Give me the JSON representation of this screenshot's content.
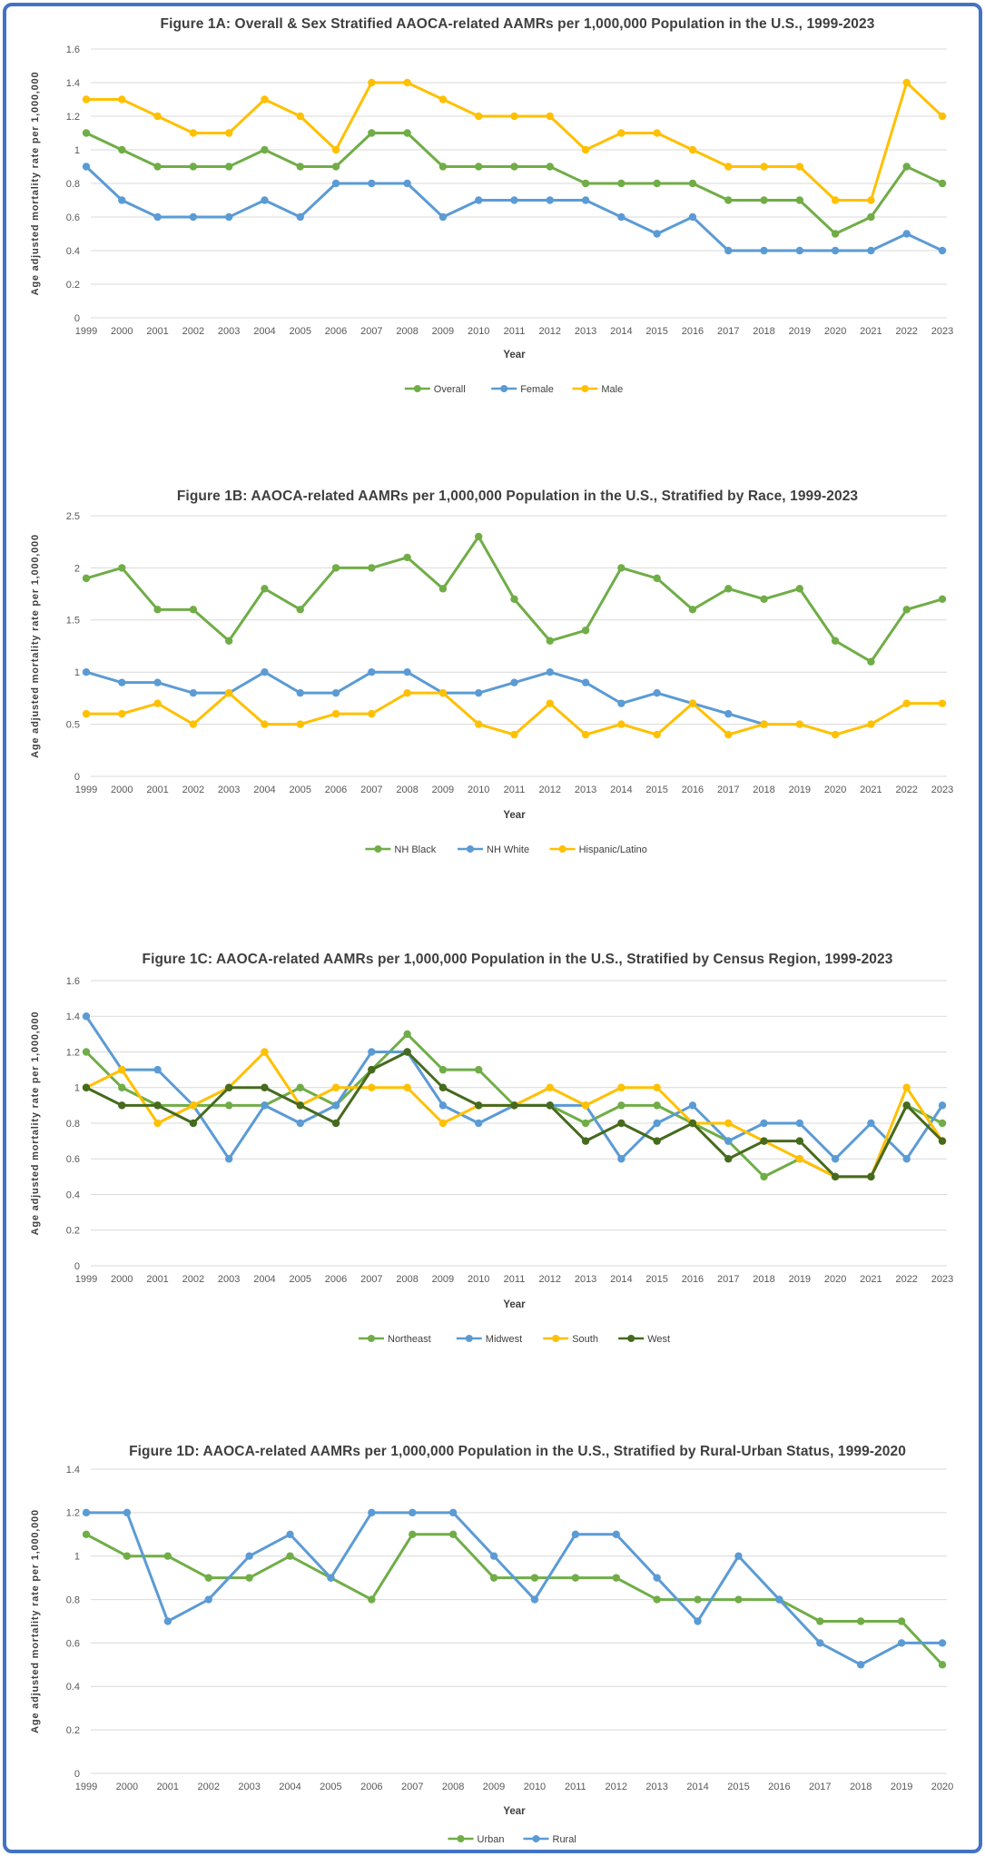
{
  "page": {
    "background": "#ffffff",
    "border_color": "#4472C4"
  },
  "chart_data": [
    {
      "type": "line",
      "title": "Figure 1A: Overall & Sex Stratified AAOCA-related AAMRs per 1,000,000 Population in the U.S., 1999-2023",
      "ylabel": "Age adjusted mortality rate per 1,000,000",
      "xlabel": "Year",
      "ylim": [
        0,
        1.6
      ],
      "ytick_step": 0.2,
      "grid": true,
      "legend_position": "bottom",
      "years": [
        1999,
        2000,
        2001,
        2002,
        2003,
        2004,
        2005,
        2006,
        2007,
        2008,
        2009,
        2010,
        2011,
        2012,
        2013,
        2014,
        2015,
        2016,
        2017,
        2018,
        2019,
        2020,
        2021,
        2022,
        2023
      ],
      "series": [
        {
          "name": "Overall",
          "color": "#70AD47",
          "values": [
            1.1,
            1.0,
            0.9,
            0.9,
            0.9,
            1.0,
            0.9,
            0.9,
            1.1,
            1.1,
            0.9,
            0.9,
            0.9,
            0.9,
            0.8,
            0.8,
            0.8,
            0.8,
            0.7,
            0.7,
            0.7,
            0.5,
            0.6,
            0.9,
            0.8
          ]
        },
        {
          "name": "Female",
          "color": "#5B9BD5",
          "values": [
            0.9,
            0.7,
            0.6,
            0.6,
            0.6,
            0.7,
            0.6,
            0.8,
            0.8,
            0.8,
            0.6,
            0.7,
            0.7,
            0.7,
            0.7,
            0.6,
            0.5,
            0.6,
            0.4,
            0.4,
            0.4,
            0.4,
            0.4,
            0.5,
            0.4
          ]
        },
        {
          "name": "Male",
          "color": "#FFC000",
          "values": [
            1.3,
            1.3,
            1.2,
            1.1,
            1.1,
            1.3,
            1.2,
            1.0,
            1.4,
            1.4,
            1.3,
            1.2,
            1.2,
            1.2,
            1.0,
            1.1,
            1.1,
            1.0,
            0.9,
            0.9,
            0.9,
            0.7,
            0.7,
            1.4,
            1.2
          ]
        }
      ]
    },
    {
      "type": "line",
      "title": "Figure 1B: AAOCA-related AAMRs per 1,000,000 Population in the U.S., Stratified by Race, 1999-2023",
      "ylabel": "Age adjusted mortality rate per 1,000,000",
      "xlabel": "Year",
      "ylim": [
        0,
        2.5
      ],
      "ytick_step": 0.5,
      "grid": true,
      "legend_position": "bottom",
      "years": [
        1999,
        2000,
        2001,
        2002,
        2003,
        2004,
        2005,
        2006,
        2007,
        2008,
        2009,
        2010,
        2011,
        2012,
        2013,
        2014,
        2015,
        2016,
        2017,
        2018,
        2019,
        2020,
        2021,
        2022,
        2023
      ],
      "series": [
        {
          "name": "NH Black",
          "color": "#70AD47",
          "values": [
            1.9,
            2.0,
            1.6,
            1.6,
            1.3,
            1.8,
            1.6,
            2.0,
            2.0,
            2.1,
            1.8,
            2.3,
            1.7,
            1.3,
            1.4,
            2.0,
            1.9,
            1.6,
            1.8,
            1.7,
            1.8,
            1.3,
            1.1,
            1.6,
            1.7
          ]
        },
        {
          "name": "NH White",
          "color": "#5B9BD5",
          "values": [
            1.0,
            0.9,
            0.9,
            0.8,
            0.8,
            1.0,
            0.8,
            0.8,
            1.0,
            1.0,
            0.8,
            0.8,
            0.9,
            1.0,
            0.9,
            0.7,
            0.8,
            0.7,
            0.6,
            0.5,
            null,
            null,
            null,
            null,
            null
          ]
        },
        {
          "name": "Hispanic/Latino",
          "color": "#FFC000",
          "values": [
            0.6,
            0.6,
            0.7,
            0.5,
            0.8,
            0.5,
            0.5,
            0.6,
            0.6,
            0.8,
            0.8,
            0.5,
            0.4,
            0.7,
            0.4,
            0.5,
            0.4,
            0.7,
            0.4,
            0.5,
            0.5,
            0.4,
            0.5,
            0.7,
            0.7
          ]
        }
      ]
    },
    {
      "type": "line",
      "title": "Figure 1C: AAOCA-related AAMRs per 1,000,000 Population in the U.S., Stratified by Census Region, 1999-2023",
      "ylabel": "Age adjusted mortality rate per 1,000,000",
      "xlabel": "Year",
      "ylim": [
        0,
        1.6
      ],
      "ytick_step": 0.2,
      "grid": true,
      "legend_position": "bottom",
      "years": [
        1999,
        2000,
        2001,
        2002,
        2003,
        2004,
        2005,
        2006,
        2007,
        2008,
        2009,
        2010,
        2011,
        2012,
        2013,
        2014,
        2015,
        2016,
        2017,
        2018,
        2019,
        2020,
        2021,
        2022,
        2023
      ],
      "series": [
        {
          "name": "Northeast",
          "color": "#70AD47",
          "values": [
            1.2,
            1.0,
            0.9,
            0.9,
            0.9,
            0.9,
            1.0,
            0.9,
            1.1,
            1.3,
            1.1,
            1.1,
            0.9,
            0.9,
            0.8,
            0.9,
            0.9,
            0.8,
            0.7,
            0.5,
            0.6,
            0.5,
            0.5,
            0.9,
            0.8
          ]
        },
        {
          "name": "Midwest",
          "color": "#5B9BD5",
          "values": [
            1.4,
            1.1,
            1.1,
            0.9,
            0.6,
            0.9,
            0.8,
            0.9,
            1.2,
            1.2,
            0.9,
            0.8,
            0.9,
            0.9,
            0.9,
            0.6,
            0.8,
            0.9,
            0.7,
            0.8,
            0.8,
            0.6,
            0.8,
            0.6,
            0.9
          ]
        },
        {
          "name": "South",
          "color": "#FFC000",
          "values": [
            1.0,
            1.1,
            0.8,
            0.9,
            1.0,
            1.2,
            0.9,
            1.0,
            1.0,
            1.0,
            0.8,
            0.9,
            0.9,
            1.0,
            0.9,
            1.0,
            1.0,
            0.8,
            0.8,
            0.7,
            0.6,
            0.5,
            0.5,
            1.0,
            0.7
          ]
        },
        {
          "name": "West",
          "color": "#466A1E",
          "values": [
            1.0,
            0.9,
            0.9,
            0.8,
            1.0,
            1.0,
            0.9,
            0.8,
            1.1,
            1.2,
            1.0,
            0.9,
            0.9,
            0.9,
            0.7,
            0.8,
            0.7,
            0.8,
            0.6,
            0.7,
            0.7,
            0.5,
            0.5,
            0.9,
            0.7
          ]
        }
      ]
    },
    {
      "type": "line",
      "title": "Figure 1D: AAOCA-related AAMRs per 1,000,000 Population in the U.S., Stratified by Rural-Urban Status, 1999-2020",
      "ylabel": "Age adjusted mortality rate per 1,000,000",
      "xlabel": "Year",
      "ylim": [
        0,
        1.4
      ],
      "ytick_step": 0.2,
      "grid": true,
      "legend_position": "bottom",
      "years": [
        1999,
        2000,
        2001,
        2002,
        2003,
        2004,
        2005,
        2006,
        2007,
        2008,
        2009,
        2010,
        2011,
        2012,
        2013,
        2014,
        2015,
        2016,
        2017,
        2018,
        2019,
        2020
      ],
      "series": [
        {
          "name": "Urban",
          "color": "#70AD47",
          "values": [
            1.1,
            1.0,
            1.0,
            0.9,
            0.9,
            1.0,
            0.9,
            0.8,
            1.1,
            1.1,
            0.9,
            0.9,
            0.9,
            0.9,
            0.8,
            0.8,
            0.8,
            0.8,
            0.7,
            0.7,
            0.7,
            0.5
          ]
        },
        {
          "name": "Rural",
          "color": "#5B9BD5",
          "values": [
            1.2,
            1.2,
            0.7,
            0.8,
            1.0,
            1.1,
            0.9,
            1.2,
            1.2,
            1.2,
            1.0,
            0.8,
            1.1,
            1.1,
            0.9,
            0.7,
            1.0,
            0.8,
            0.6,
            0.5,
            0.6,
            0.6
          ]
        }
      ]
    }
  ]
}
